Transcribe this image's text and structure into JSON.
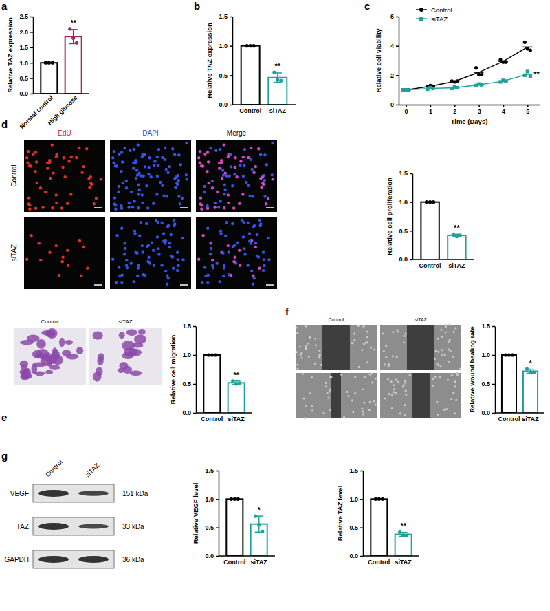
{
  "chart_data": [
    {
      "type": "bar",
      "panel": "a",
      "ylabel": "Relative TAZ expression",
      "categories": [
        "Normal control",
        "High glucose"
      ],
      "values": [
        1.0,
        1.85
      ],
      "errors": [
        0,
        0.23
      ],
      "points": [
        [
          1,
          1,
          1
        ],
        [
          2.1,
          1.8,
          1.65
        ]
      ],
      "colors": [
        "#000000",
        "#9b2a5a"
      ],
      "ylim": [
        0,
        2.5
      ],
      "yticks": [
        {
          "value": 0,
          "label": "0.0"
        },
        0.5,
        {
          "value": 1,
          "label": "1.0"
        },
        1.5,
        {
          "value": 2,
          "label": "2.0"
        },
        2.5
      ],
      "significance": [
        null,
        "**"
      ]
    },
    {
      "type": "bar",
      "panel": "b",
      "ylabel": "Relative TAZ expression",
      "categories": [
        "Control",
        "siTAZ"
      ],
      "values": [
        1.0,
        0.46
      ],
      "errors": [
        0,
        0.08
      ],
      "points": [
        [
          1,
          1,
          1
        ],
        [
          0.55,
          0.42,
          0.41
        ]
      ],
      "colors": [
        "#000000",
        "#22a09b"
      ],
      "ylim": [
        0,
        1.5
      ],
      "yticks": [
        {
          "value": 0,
          "label": "0.0"
        },
        0.5,
        {
          "value": 1,
          "label": "1.0"
        },
        1.5
      ],
      "significance": [
        null,
        "**"
      ]
    },
    {
      "type": "line",
      "panel": "c",
      "xlabel": "Time (Days)",
      "ylabel": "Relative cell viability",
      "x": [
        0,
        1,
        2,
        3,
        4,
        5
      ],
      "xlim": [
        -0.3,
        5.5
      ],
      "xticks": [
        0,
        1,
        2,
        3,
        4,
        5
      ],
      "ylim": [
        0,
        6
      ],
      "yticks": [
        0,
        2,
        4,
        6
      ],
      "legend": "top-left",
      "series": [
        {
          "name": "Control",
          "color": "#000000",
          "marker": "circle",
          "values": [
            1,
            1.25,
            1.58,
            2.2,
            2.95,
            3.92
          ],
          "replicates": [
            [
              1,
              1,
              1
            ],
            [
              1.2,
              1.3,
              1.25
            ],
            [
              1.6,
              1.55,
              1.6
            ],
            [
              2.5,
              2.05,
              2.05
            ],
            [
              3.05,
              2.9,
              2.9
            ],
            [
              4.25,
              3.8,
              3.7
            ]
          ]
        },
        {
          "name": "siTAZ",
          "color": "#22a09b",
          "marker": "square",
          "values": [
            1,
            1.1,
            1.15,
            1.35,
            1.6,
            2.07
          ],
          "replicates": [
            [
              1,
              1,
              1
            ],
            [
              1.05,
              1.15,
              1.1
            ],
            [
              1.1,
              1.2,
              1.15
            ],
            [
              1.3,
              1.4,
              1.35
            ],
            [
              1.55,
              1.65,
              1.6
            ],
            [
              2.0,
              2.25,
              1.95
            ]
          ],
          "significance": "**"
        }
      ]
    },
    {
      "type": "bar",
      "ylabel": "Relative cell proliferation",
      "categories": [
        "Control",
        "siTAZ"
      ],
      "values": [
        1.0,
        0.42
      ],
      "errors": [
        0,
        0.02
      ],
      "points": [
        [
          1,
          1,
          1
        ],
        [
          0.44,
          0.4,
          0.42
        ]
      ],
      "colors": [
        "#000000",
        "#22a09b"
      ],
      "ylim": [
        0,
        1.5
      ],
      "yticks": [
        {
          "value": 0,
          "label": "0.0"
        },
        0.5,
        {
          "value": 1,
          "label": "1.0"
        },
        1.5
      ],
      "significance": [
        null,
        "**"
      ]
    },
    {
      "type": "bar",
      "ylabel": "Relative cell migration",
      "categories": [
        "Control",
        "siTAZ"
      ],
      "values": [
        1.0,
        0.52
      ],
      "errors": [
        0,
        0.03
      ],
      "points": [
        [
          1,
          1,
          1
        ],
        [
          0.55,
          0.5,
          0.51
        ]
      ],
      "colors": [
        "#000000",
        "#22a09b"
      ],
      "ylim": [
        0,
        1.5
      ],
      "yticks": [
        {
          "value": 0,
          "label": "0.0"
        },
        0.5,
        {
          "value": 1,
          "label": "1.0"
        },
        1.5
      ],
      "significance": [
        null,
        "**"
      ]
    },
    {
      "type": "bar",
      "ylabel": "Relative wound healing rate",
      "categories": [
        "Control",
        "siTAZ"
      ],
      "values": [
        1.0,
        0.72
      ],
      "errors": [
        0,
        0.035
      ],
      "points": [
        [
          1,
          1,
          1
        ],
        [
          0.76,
          0.7,
          0.7
        ]
      ],
      "colors": [
        "#000000",
        "#22a09b"
      ],
      "ylim": [
        0,
        1.5
      ],
      "yticks": [
        {
          "value": 0,
          "label": "0.0"
        },
        0.5,
        {
          "value": 1,
          "label": "1.0"
        },
        1.5
      ],
      "significance": [
        null,
        "*"
      ]
    },
    {
      "type": "bar",
      "ylabel": "Relative VEGF level",
      "categories": [
        "Control",
        "siTAZ"
      ],
      "values": [
        1.0,
        0.56
      ],
      "errors": [
        0,
        0.14
      ],
      "points": [
        [
          1,
          1,
          1
        ],
        [
          0.7,
          0.55,
          0.43
        ]
      ],
      "colors": [
        "#000000",
        "#22a09b"
      ],
      "ylim": [
        0,
        1.5
      ],
      "yticks": [
        {
          "value": 0,
          "label": "0.0"
        },
        0.5,
        {
          "value": 1,
          "label": "1.0"
        },
        1.5
      ],
      "significance": [
        null,
        "*"
      ]
    },
    {
      "type": "bar",
      "ylabel": "Relative TAZ level",
      "categories": [
        "Control",
        "siTAZ"
      ],
      "values": [
        1.0,
        0.38
      ],
      "errors": [
        0,
        0.035
      ],
      "points": [
        [
          1,
          1,
          1
        ],
        [
          0.42,
          0.36,
          0.36
        ]
      ],
      "colors": [
        "#000000",
        "#22a09b"
      ],
      "ylim": [
        0,
        1.5
      ],
      "yticks": [
        {
          "value": 0,
          "label": "0.0"
        },
        0.5,
        {
          "value": 1,
          "label": "1.0"
        },
        1.5
      ],
      "significance": [
        null,
        "**"
      ]
    }
  ],
  "figures": {
    "d": {
      "panel": "d",
      "columns": [
        "EdU",
        "DAPI",
        "Merge"
      ],
      "rows": [
        "Control",
        "siTAZ"
      ]
    },
    "e": {
      "panel": "e",
      "columns": [
        "Control",
        "siTAZ"
      ]
    },
    "f": {
      "panel": "f",
      "columns": [
        "Control",
        "siTAZ"
      ]
    },
    "g": {
      "panel": "g",
      "columns": [
        "Control",
        "siTAZ"
      ],
      "bands": [
        {
          "name": "VEGF",
          "size": "151 kDa"
        },
        {
          "name": "TAZ",
          "size": "33 kDa"
        },
        {
          "name": "GAPDH",
          "size": "36 kDa"
        }
      ]
    }
  }
}
